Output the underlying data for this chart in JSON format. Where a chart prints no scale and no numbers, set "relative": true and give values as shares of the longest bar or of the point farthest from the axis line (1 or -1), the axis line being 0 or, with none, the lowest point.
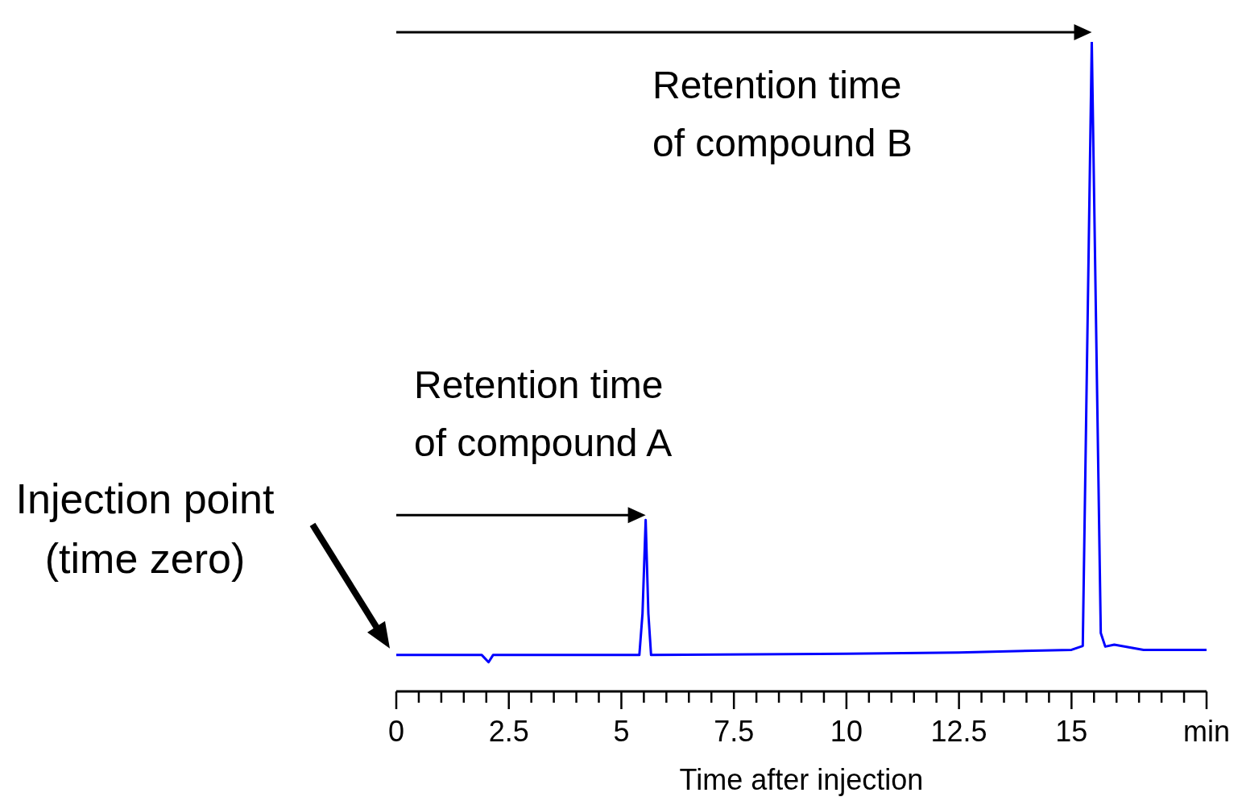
{
  "chart_data": {
    "type": "line",
    "relative": true,
    "xlabel": "Time after injection",
    "x": [
      0,
      1.9,
      2.05,
      2.15,
      5.4,
      5.47,
      5.54,
      5.6,
      5.66,
      10,
      12.5,
      15.0,
      15.25,
      15.45,
      15.65,
      15.75,
      15.95,
      16.6,
      18
    ],
    "series": [
      {
        "color": "#0000ff",
        "values": [
          0.056,
          0.056,
          0.045,
          0.056,
          0.056,
          0.12,
          0.264,
          0.12,
          0.056,
          0.058,
          0.06,
          0.064,
          0.07,
          1,
          0.09,
          0.069,
          0.072,
          0.064,
          0.064
        ]
      }
    ],
    "xlim": [
      0,
      18
    ],
    "xticks": [
      0,
      {
        "value": 0.5,
        "label": null
      },
      {
        "value": 1,
        "label": null
      },
      {
        "value": 1.5,
        "label": null
      },
      {
        "value": 2,
        "label": null
      },
      2.5,
      {
        "value": 3,
        "label": null
      },
      {
        "value": 3.5,
        "label": null
      },
      {
        "value": 4,
        "label": null
      },
      {
        "value": 4.5,
        "label": null
      },
      5,
      {
        "value": 5.5,
        "label": null
      },
      {
        "value": 6,
        "label": null
      },
      {
        "value": 6.5,
        "label": null
      },
      {
        "value": 7,
        "label": null
      },
      7.5,
      {
        "value": 8,
        "label": null
      },
      {
        "value": 8.5,
        "label": null
      },
      {
        "value": 9,
        "label": null
      },
      {
        "value": 9.5,
        "label": null
      },
      10,
      {
        "value": 10.5,
        "label": null
      },
      {
        "value": 11,
        "label": null
      },
      {
        "value": 11.5,
        "label": null
      },
      {
        "value": 12,
        "label": null
      },
      12.5,
      {
        "value": 13,
        "label": null
      },
      {
        "value": 13.5,
        "label": null
      },
      {
        "value": 14,
        "label": null
      },
      {
        "value": 14.5,
        "label": null
      },
      15,
      {
        "value": 15.5,
        "label": null
      },
      {
        "value": 16,
        "label": null
      },
      {
        "value": 16.5,
        "label": null
      },
      {
        "value": 17,
        "label": null
      },
      {
        "value": 17.5,
        "label": null
      },
      {
        "value": 18,
        "label": "min"
      }
    ],
    "grid": false,
    "legend": false,
    "marker": "none",
    "line_style": "solid",
    "annotations": [
      {
        "text": "Retention time\nof compound A",
        "x": 5.54,
        "y": 0.264
      },
      "Retention time\nof compound B",
      "Injection point\n(time zero)"
    ]
  }
}
